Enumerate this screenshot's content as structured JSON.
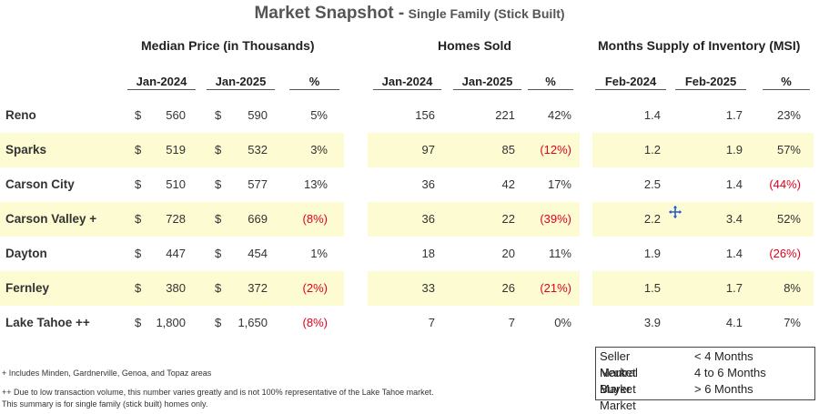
{
  "title": {
    "main": "Market Snapshot -",
    "sub": "Single Family (Stick Built)"
  },
  "groups": {
    "median": "Median Price (in Thousands)",
    "sold": "Homes Sold",
    "msi": "Months Supply of Inventory (MSI)"
  },
  "columns": {
    "m1": "Jan-2024",
    "m2": "Jan-2025",
    "m3": "%",
    "s1": "Jan-2024",
    "s2": "Jan-2025",
    "s3": "%",
    "i1": "Feb-2024",
    "i2": "Feb-2025",
    "i3": "%"
  },
  "currency": "$",
  "rows": [
    {
      "name": "Reno",
      "highlight": false,
      "p1": "560",
      "p2": "590",
      "pp": "5%",
      "s1": "156",
      "s2": "221",
      "sp": "42%",
      "i1": "1.4",
      "i2": "1.7",
      "ip": "23%"
    },
    {
      "name": "Sparks",
      "highlight": true,
      "p1": "519",
      "p2": "532",
      "pp": "3%",
      "s1": "97",
      "s2": "85",
      "sp": "(12%)",
      "i1": "1.2",
      "i2": "1.9",
      "ip": "57%"
    },
    {
      "name": "Carson City",
      "highlight": false,
      "p1": "510",
      "p2": "577",
      "pp": "13%",
      "s1": "36",
      "s2": "42",
      "sp": "17%",
      "i1": "2.5",
      "i2": "1.4",
      "ip": "(44%)"
    },
    {
      "name": "Carson Valley +",
      "highlight": true,
      "p1": "728",
      "p2": "669",
      "pp": "(8%)",
      "s1": "36",
      "s2": "22",
      "sp": "(39%)",
      "i1": "2.2",
      "i2": "3.4",
      "ip": "52%"
    },
    {
      "name": "Dayton",
      "highlight": false,
      "p1": "447",
      "p2": "454",
      "pp": "1%",
      "s1": "18",
      "s2": "20",
      "sp": "11%",
      "i1": "1.9",
      "i2": "1.4",
      "ip": "(26%)"
    },
    {
      "name": "Fernley",
      "highlight": true,
      "p1": "380",
      "p2": "372",
      "pp": "(2%)",
      "s1": "33",
      "s2": "26",
      "sp": "(21%)",
      "i1": "1.5",
      "i2": "1.7",
      "ip": "8%"
    },
    {
      "name": "Lake Tahoe ++",
      "highlight": false,
      "p1": "1,800",
      "p2": "1,650",
      "pp": "(8%)",
      "s1": "7",
      "s2": "7",
      "sp": "0%",
      "i1": "3.9",
      "i2": "4.1",
      "ip": "7%"
    }
  ],
  "colors": {
    "highlight": "#fdfbd2",
    "negative": "#e0001a"
  },
  "legend": [
    {
      "label": "Seller Market",
      "value": "< 4 Months"
    },
    {
      "label": "Neutral Market",
      "value": "4 to 6 Months"
    },
    {
      "label": "Buyer Market",
      "value": "> 6  Months"
    }
  ],
  "notes": [
    "+ Includes Minden, Gardnerville, Genoa, and Topaz areas",
    "++ Due to low transaction volume, this number varies greatly and is not 100% representative of the Lake Tahoe market.",
    "This summary is for single family (stick built) homes only."
  ],
  "cursor_icon": "move-cursor-icon"
}
